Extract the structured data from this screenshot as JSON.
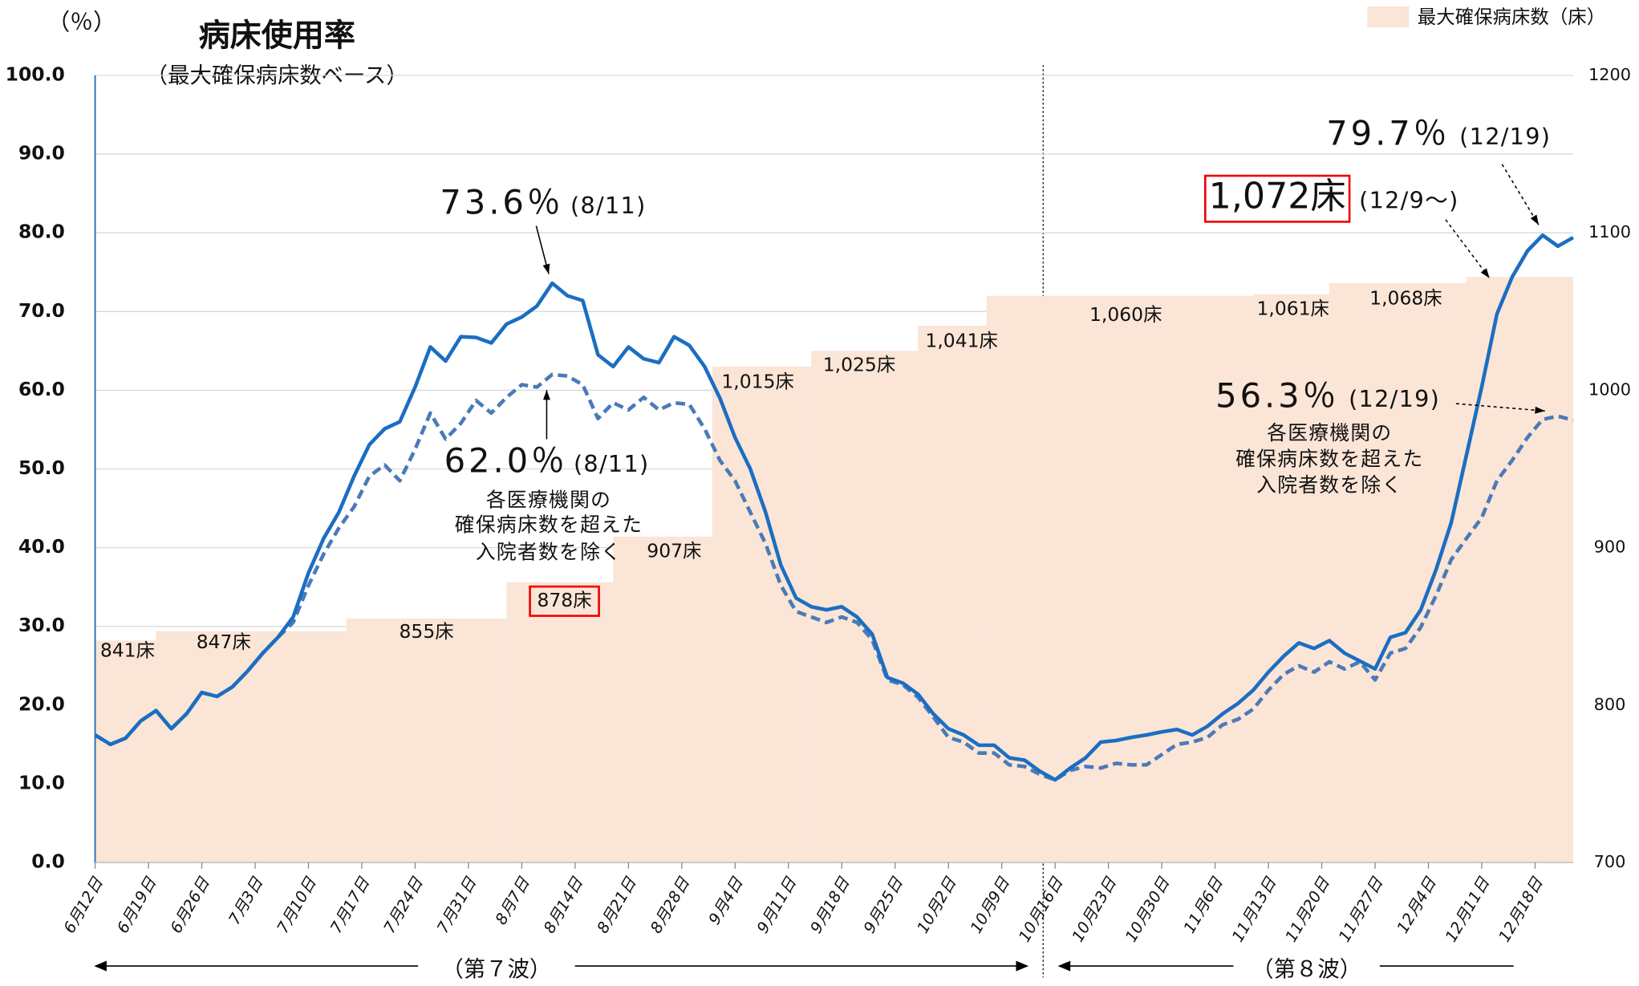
{
  "chart_data": {
    "type": "combo",
    "title": "病床使用率",
    "subtitle": "（最大確保病床数ベース）",
    "y_label": "（％）",
    "legend": "top-right",
    "grid": true,
    "xlim": [
      "6月12日",
      "12月23日"
    ],
    "xticks": [
      "6月12日",
      "6月19日",
      "6月26日",
      "7月3日",
      "7月10日",
      "7月17日",
      "7月24日",
      "7月31日",
      "8月7日",
      "8月14日",
      "8月21日",
      "8月28日",
      "9月4日",
      "9月11日",
      "9月18日",
      "9月25日",
      "10月2日",
      "10月9日",
      "10月16日",
      "10月23日",
      "10月30日",
      "11月6日",
      "11月13日",
      "11月20日",
      "11月27日",
      "12月4日",
      "12月11日",
      "12月18日"
    ],
    "ylim": [
      0,
      100
    ],
    "yticks": [
      {
        "value": 0,
        "label": "0.0"
      },
      {
        "value": 10,
        "label": "10.0"
      },
      {
        "value": 20,
        "label": "20.0"
      },
      {
        "value": 30,
        "label": "30.0"
      },
      {
        "value": 40,
        "label": "40.0"
      },
      {
        "value": 50,
        "label": "50.0"
      },
      {
        "value": 60,
        "label": "60.0"
      },
      {
        "value": 70,
        "label": "70.0"
      },
      {
        "value": 80,
        "label": "80.0"
      },
      {
        "value": 90,
        "label": "90.0"
      },
      {
        "value": 100,
        "label": "100.0"
      }
    ],
    "y2lim": [
      700,
      1200
    ],
    "y2ticks": [
      700,
      800,
      900,
      1000,
      1100,
      1200
    ],
    "steps": {
      "name": "最大確保病床数（床）",
      "color": "#fbe5d6",
      "axis": "y2",
      "x": [
        "6月12日",
        "6月20日",
        "7月15日",
        "8月5日",
        "8月19日",
        "9月1日",
        "9月14日",
        "9月28日",
        "10月7日",
        "11月11日",
        "11月21日",
        "12月9日"
      ],
      "values": [
        841,
        847,
        855,
        878,
        907,
        1015,
        1025,
        1041,
        1060,
        1061,
        1068,
        1072
      ],
      "value_labels": [
        "841床",
        "847床",
        "855床",
        "878床",
        "907床",
        "1,015床",
        "1,025床",
        "1,041床",
        "1,060床",
        "1,061床",
        "1,068床",
        "1,072床"
      ]
    },
    "x": [
      "6月12日",
      "6月14日",
      "6月16日",
      "6月18日",
      "6月20日",
      "6月22日",
      "6月24日",
      "6月26日",
      "6月28日",
      "6月30日",
      "7月2日",
      "7月4日",
      "7月6日",
      "7月8日",
      "7月10日",
      "7月12日",
      "7月14日",
      "7月16日",
      "7月18日",
      "7月20日",
      "7月22日",
      "7月24日",
      "7月26日",
      "7月28日",
      "7月30日",
      "8月1日",
      "8月3日",
      "8月5日",
      "8月7日",
      "8月9日",
      "8月11日",
      "8月13日",
      "8月15日",
      "8月17日",
      "8月19日",
      "8月21日",
      "8月23日",
      "8月25日",
      "8月27日",
      "8月29日",
      "8月31日",
      "9月2日",
      "9月4日",
      "9月6日",
      "9月8日",
      "9月10日",
      "9月12日",
      "9月14日",
      "9月16日",
      "9月18日",
      "9月20日",
      "9月22日",
      "9月24日",
      "9月26日",
      "9月28日",
      "9月30日",
      "10月2日",
      "10月4日",
      "10月6日",
      "10月8日",
      "10月10日",
      "10月12日",
      "10月14日",
      "10月16日",
      "10月18日",
      "10月20日",
      "10月22日",
      "10月24日",
      "10月26日",
      "10月28日",
      "10月30日",
      "11月1日",
      "11月3日",
      "11月5日",
      "11月7日",
      "11月9日",
      "11月11日",
      "11月13日",
      "11月15日",
      "11月17日",
      "11月19日",
      "11月21日",
      "11月23日",
      "11月25日",
      "11月27日",
      "11月29日",
      "12月1日",
      "12月3日",
      "12月5日",
      "12月7日",
      "12月9日",
      "12月11日",
      "12月13日",
      "12月15日",
      "12月17日",
      "12月19日",
      "12月21日",
      "12月23日"
    ],
    "series": [
      {
        "color": "#1b6ec2",
        "dashed": false,
        "values": [
          16.2,
          15.0,
          15.8,
          18.0,
          19.3,
          17.0,
          18.9,
          21.6,
          21.1,
          22.3,
          24.3,
          26.6,
          28.6,
          31.2,
          36.8,
          41.2,
          44.5,
          49.1,
          53.1,
          55.1,
          56.0,
          60.4,
          65.5,
          63.7,
          66.8,
          66.7,
          66.0,
          68.4,
          69.3,
          70.7,
          73.6,
          72.0,
          71.4,
          64.5,
          63.0,
          65.5,
          64.0,
          63.5,
          66.8,
          65.7,
          63.0,
          59.0,
          54.0,
          50.0,
          44.5,
          37.8,
          33.6,
          32.5,
          32.1,
          32.5,
          31.2,
          29.0,
          23.5,
          22.8,
          21.4,
          18.9,
          17.0,
          16.2,
          14.9,
          14.9,
          13.3,
          13.0,
          11.6,
          10.5,
          12.0,
          13.3,
          15.3,
          15.5,
          15.9,
          16.2,
          16.6,
          16.9,
          16.2,
          17.3,
          18.9,
          20.2,
          21.9,
          24.2,
          26.2,
          27.9,
          27.2,
          28.2,
          26.6,
          25.6,
          24.6,
          28.6,
          29.2,
          32.1,
          37.2,
          43.2,
          51.8,
          60.4,
          69.7,
          74.4,
          77.7,
          79.7,
          78.3,
          79.4
        ]
      },
      {
        "color": "#4a7ab8",
        "dashed": true,
        "values": [
          16.2,
          15.0,
          15.8,
          18.0,
          19.3,
          17.0,
          18.9,
          21.6,
          21.1,
          22.3,
          24.3,
          26.6,
          28.6,
          30.5,
          35.2,
          39.2,
          42.5,
          45.2,
          49.1,
          50.5,
          48.5,
          52.5,
          57.1,
          53.8,
          55.8,
          58.7,
          57.1,
          59.1,
          60.7,
          60.4,
          62.0,
          61.8,
          60.7,
          56.4,
          58.4,
          57.5,
          59.1,
          57.5,
          58.4,
          58.2,
          55.1,
          51.1,
          48.5,
          44.5,
          40.5,
          35.2,
          31.9,
          31.2,
          30.5,
          31.2,
          30.5,
          28.3,
          23.2,
          22.6,
          21.0,
          18.5,
          15.9,
          15.3,
          13.9,
          13.9,
          12.4,
          12.2,
          11.2,
          10.5,
          11.7,
          12.2,
          12.0,
          12.6,
          12.4,
          12.4,
          13.7,
          15.0,
          15.3,
          15.9,
          17.5,
          18.2,
          19.5,
          21.9,
          23.9,
          25.0,
          24.2,
          25.5,
          24.6,
          25.5,
          23.2,
          26.6,
          27.2,
          29.9,
          33.9,
          38.5,
          41.2,
          43.8,
          48.5,
          51.1,
          54.0,
          56.3,
          56.7,
          56.2
        ]
      }
    ],
    "annotations": [
      "73.6％",
      "(8/11)",
      "62.0％",
      "(8/11)",
      "各医療機関の",
      "確保病床数を超えた",
      "入院者数を除く",
      "79.7％",
      "(12/19)",
      "56.3％",
      "(12/19)",
      "各医療機関の",
      "確保病床数を超えた",
      "入院者数を除く",
      "(12/9～)"
    ],
    "waves": [
      "（第７波）",
      "（第８波）"
    ]
  }
}
